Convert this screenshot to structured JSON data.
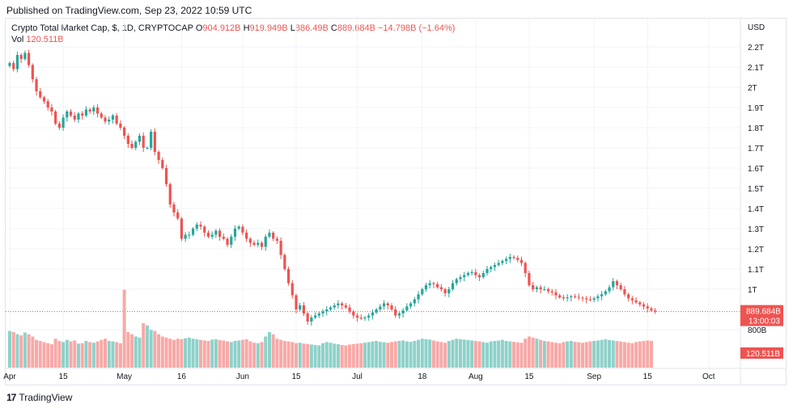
{
  "published": "Published on TradingView.com, Sep 23, 2022 10:59 UTC",
  "brand": "TradingView",
  "legend": {
    "symbol": "Crypto Total Market Cap, $, 1D, CRYPTOCAP",
    "o_label": "O",
    "o_value": "904.912B",
    "h_label": "H",
    "h_value": "919.949B",
    "l_label": "L",
    "l_value": "886.49B",
    "c_label": "C",
    "c_value": "889.684B",
    "change": "−14.798B (−1.64%)",
    "vol_label": "Vol",
    "vol_value": "120.511B"
  },
  "colors": {
    "up": "#26a69a",
    "down": "#ef5350",
    "vol_up": "#8ed1c9",
    "vol_down": "#f7a9a7",
    "grid": "#f0f3fa"
  },
  "chart_data": {
    "type": "candlestick",
    "currency_label": "USD",
    "y_ticks": [
      {
        "v": 800,
        "t": "800B"
      },
      {
        "v": 1000,
        "t": "1T"
      },
      {
        "v": 1100,
        "t": "1.1T"
      },
      {
        "v": 1200,
        "t": "1.2T"
      },
      {
        "v": 1300,
        "t": "1.3T"
      },
      {
        "v": 1400,
        "t": "1.4T"
      },
      {
        "v": 1500,
        "t": "1.5T"
      },
      {
        "v": 1600,
        "t": "1.6T"
      },
      {
        "v": 1700,
        "t": "1.7T"
      },
      {
        "v": 1800,
        "t": "1.8T"
      },
      {
        "v": 1900,
        "t": "1.9T"
      },
      {
        "v": 2000,
        "t": "2T"
      },
      {
        "v": 2100,
        "t": "2.1T"
      },
      {
        "v": 2200,
        "t": "2.2T"
      }
    ],
    "x_ticks": [
      {
        "d": 0,
        "t": "Apr"
      },
      {
        "d": 14,
        "t": "15"
      },
      {
        "d": 30,
        "t": "May"
      },
      {
        "d": 45,
        "t": "16"
      },
      {
        "d": 61,
        "t": "Jun"
      },
      {
        "d": 75,
        "t": "15"
      },
      {
        "d": 91,
        "t": "Jul"
      },
      {
        "d": 108,
        "t": "18"
      },
      {
        "d": 122,
        "t": "Aug"
      },
      {
        "d": 136,
        "t": "15"
      },
      {
        "d": 153,
        "t": "Sep"
      },
      {
        "d": 167,
        "t": "15"
      },
      {
        "d": 183,
        "t": "Oct"
      }
    ],
    "last_price": "889.684B",
    "countdown": "13:00:03",
    "last_volume": "120.511B",
    "closes": [
      2120,
      2090,
      2160,
      2140,
      2170,
      2110,
      2040,
      1980,
      1950,
      1930,
      1900,
      1880,
      1820,
      1800,
      1850,
      1880,
      1860,
      1840,
      1870,
      1860,
      1890,
      1880,
      1900,
      1870,
      1850,
      1830,
      1840,
      1860,
      1820,
      1800,
      1760,
      1720,
      1700,
      1730,
      1760,
      1700,
      1700,
      1780,
      1680,
      1640,
      1600,
      1520,
      1420,
      1380,
      1350,
      1250,
      1270,
      1270,
      1300,
      1320,
      1310,
      1280,
      1260,
      1270,
      1290,
      1260,
      1250,
      1220,
      1260,
      1300,
      1310,
      1280,
      1250,
      1230,
      1220,
      1230,
      1210,
      1260,
      1280,
      1250,
      1240,
      1170,
      1100,
      1030,
      970,
      900,
      920,
      880,
      840,
      860,
      870,
      880,
      890,
      900,
      910,
      920,
      930,
      920,
      910,
      890,
      870,
      860,
      855,
      860,
      870,
      885,
      900,
      915,
      930,
      920,
      900,
      870,
      880,
      895,
      915,
      930,
      950,
      975,
      1000,
      1020,
      1030,
      1025,
      1010,
      1000,
      980,
      1000,
      1030,
      1050,
      1060,
      1070,
      1080,
      1085,
      1070,
      1060,
      1080,
      1100,
      1110,
      1120,
      1130,
      1140,
      1150,
      1160,
      1155,
      1145,
      1130,
      1080,
      1020,
      1000,
      1010,
      1000,
      1000,
      990,
      985,
      970,
      960,
      955,
      960,
      965,
      962,
      958,
      955,
      950,
      948,
      955,
      965,
      975,
      990,
      1010,
      1040,
      1020,
      1000,
      975,
      955,
      945,
      935,
      925,
      915,
      905,
      895,
      889.684
    ],
    "volumes": [
      165,
      160,
      150,
      145,
      158,
      150,
      140,
      125,
      120,
      115,
      110,
      105,
      130,
      120,
      115,
      125,
      118,
      122,
      108,
      110,
      120,
      115,
      112,
      118,
      125,
      130,
      120,
      118,
      115,
      110,
      350,
      160,
      150,
      140,
      135,
      200,
      190,
      170,
      165,
      150,
      140,
      135,
      130,
      125,
      130,
      128,
      132,
      135,
      130,
      128,
      125,
      122,
      120,
      126,
      128,
      124,
      122,
      118,
      115,
      120,
      122,
      125,
      128,
      118,
      112,
      110,
      115,
      140,
      160,
      150,
      130,
      125,
      120,
      118,
      115,
      110,
      112,
      108,
      106,
      104,
      102,
      100,
      110,
      115,
      112,
      108,
      105,
      102,
      100,
      104,
      106,
      108,
      110,
      112,
      115,
      118,
      120,
      116,
      114,
      112,
      115,
      118,
      120,
      122,
      118,
      116,
      120,
      125,
      130,
      128,
      126,
      122,
      118,
      115,
      112,
      120,
      125,
      130,
      128,
      126,
      124,
      122,
      120,
      118,
      115,
      112,
      118,
      120,
      122,
      125,
      120,
      118,
      116,
      114,
      112,
      130,
      140,
      135,
      130,
      125,
      120,
      118,
      115,
      112,
      110,
      115,
      118,
      120,
      116,
      114,
      112,
      115,
      118,
      120,
      122,
      125,
      128,
      124,
      122,
      120,
      118,
      115,
      112,
      110,
      115,
      118,
      120,
      122,
      120.5
    ],
    "vol_scale_max": 400
  }
}
